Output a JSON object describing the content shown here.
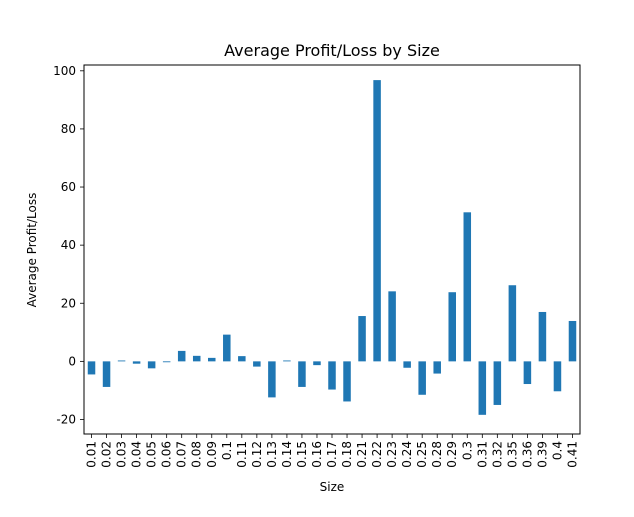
{
  "chart_data": {
    "type": "bar",
    "title": "Average Profit/Loss by Size",
    "xlabel": "Size",
    "ylabel": "Average Profit/Loss",
    "ylim": [
      -25,
      102
    ],
    "yticks": [
      -20,
      0,
      20,
      40,
      60,
      80,
      100
    ],
    "grid": false,
    "legend": "none",
    "bar_color": "#1f77b4",
    "categories": [
      "0.01",
      "0.02",
      "0.03",
      "0.04",
      "0.05",
      "0.06",
      "0.07",
      "0.08",
      "0.09",
      "0.1",
      "0.11",
      "0.12",
      "0.13",
      "0.14",
      "0.15",
      "0.16",
      "0.17",
      "0.18",
      "0.21",
      "0.22",
      "0.23",
      "0.24",
      "0.25",
      "0.28",
      "0.29",
      "0.3",
      "0.31",
      "0.32",
      "0.35",
      "0.36",
      "0.39",
      "0.4",
      "0.41"
    ],
    "values": [
      -4.5,
      -8.8,
      0.3,
      -0.8,
      -2.4,
      -0.3,
      3.6,
      1.9,
      1.2,
      9.2,
      1.8,
      -1.8,
      -12.4,
      0.3,
      -8.8,
      -1.3,
      -9.7,
      -13.8,
      15.6,
      96.8,
      24.1,
      -2.2,
      -11.5,
      -4.2,
      23.8,
      51.3,
      -18.4,
      -15.0,
      26.2,
      -7.8,
      17.0,
      -10.3,
      13.9
    ]
  }
}
